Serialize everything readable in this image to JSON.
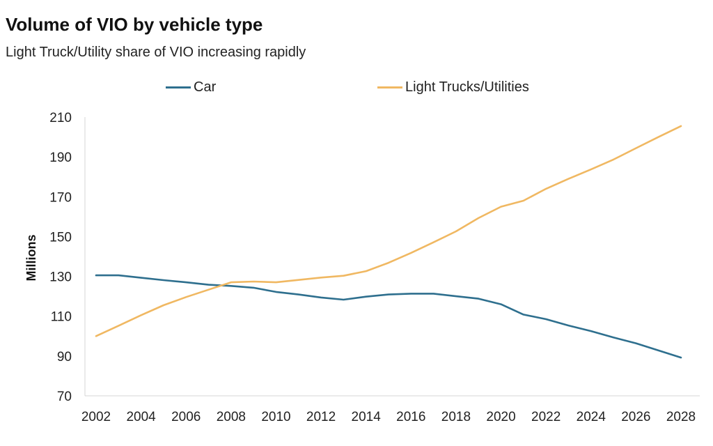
{
  "chart_data": {
    "type": "line",
    "title": "Volume of VIO by vehicle type",
    "subtitle": "Light Truck/Utility share of VIO increasing rapidly",
    "xlabel": "",
    "ylabel": "Millions",
    "ylim": [
      70,
      210
    ],
    "yticks": [
      70,
      90,
      110,
      130,
      150,
      170,
      190,
      210
    ],
    "xlim": [
      2002,
      2028
    ],
    "xticks": [
      2002,
      2004,
      2006,
      2008,
      2010,
      2012,
      2014,
      2016,
      2018,
      2020,
      2022,
      2024,
      2026,
      2028
    ],
    "legend_position": "top",
    "grid": false,
    "x": [
      2002,
      2003,
      2004,
      2005,
      2006,
      2007,
      2008,
      2009,
      2010,
      2011,
      2012,
      2013,
      2014,
      2015,
      2016,
      2017,
      2018,
      2019,
      2020,
      2021,
      2022,
      2023,
      2024,
      2025,
      2026,
      2027,
      2028
    ],
    "series": [
      {
        "name": "Car",
        "color": "#2e6f8e",
        "values": [
          130.5,
          130.5,
          129.3,
          128.1,
          127.0,
          125.8,
          125.2,
          124.3,
          122.2,
          120.9,
          119.4,
          118.3,
          119.8,
          120.9,
          121.3,
          121.3,
          120.0,
          118.8,
          116.0,
          110.8,
          108.5,
          105.3,
          102.5,
          99.3,
          96.4,
          92.8,
          89.2
        ]
      },
      {
        "name": "Light Trucks/Utilities",
        "color": "#f0b862",
        "values": [
          100.0,
          105.2,
          110.5,
          115.5,
          119.6,
          123.3,
          127.0,
          127.4,
          127.0,
          128.2,
          129.4,
          130.3,
          132.6,
          136.8,
          141.8,
          147.1,
          152.6,
          159.3,
          165.0,
          168.0,
          174.0,
          179.0,
          183.7,
          188.7,
          194.4,
          200.0,
          205.5
        ]
      }
    ]
  }
}
